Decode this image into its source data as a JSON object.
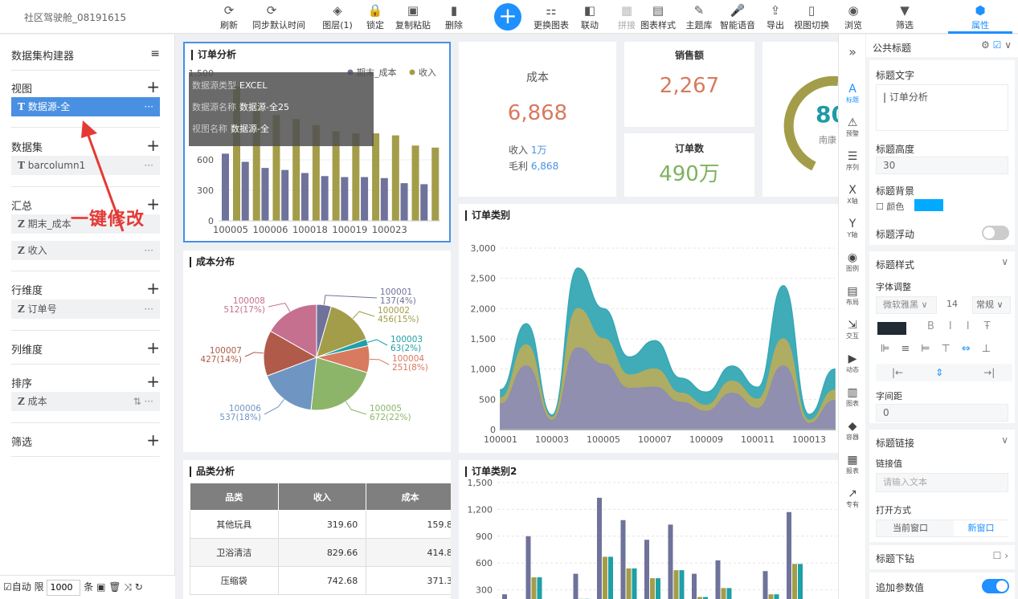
{
  "app": {
    "title": "社区驾驶舱_08191615"
  },
  "toolbar": [
    {
      "label": "刷新",
      "icon": "refresh-icon",
      "g": "⟳"
    },
    {
      "label": "同步默认时间",
      "icon": "sync-time-icon",
      "g": "⟳"
    },
    {
      "label": "图层(1)",
      "icon": "layers-icon",
      "g": "◈"
    },
    {
      "label": "锁定",
      "icon": "lock-icon",
      "g": "🔒"
    },
    {
      "label": "复制粘贴",
      "icon": "copy-paste-icon",
      "g": "▣"
    },
    {
      "label": "删除",
      "icon": "delete-icon",
      "g": "▮"
    },
    {
      "label": "更换图表",
      "icon": "change-chart-icon",
      "g": "⚏"
    },
    {
      "label": "联动",
      "icon": "link-icon",
      "g": "◧"
    },
    {
      "label": "拼接",
      "icon": "splice-icon",
      "g": "▦"
    },
    {
      "label": "图表样式",
      "icon": "chart-style-icon",
      "g": "▤"
    },
    {
      "label": "主题库",
      "icon": "theme-icon",
      "g": "✎"
    },
    {
      "label": "智能语音",
      "icon": "mic-icon",
      "g": "🎤"
    },
    {
      "label": "导出",
      "icon": "export-icon",
      "g": "⇪"
    },
    {
      "label": "视图切换",
      "icon": "view-switch-icon",
      "g": "▯"
    },
    {
      "label": "浏览",
      "icon": "eye-icon",
      "g": "◉"
    },
    {
      "label": "筛选",
      "icon": "filter-icon",
      "g": "▼"
    },
    {
      "label": "属性",
      "icon": "properties-icon",
      "g": "⬢"
    }
  ],
  "left": {
    "header": "数据集构建器",
    "view_label": "视图",
    "view_item": "数据源-全",
    "dataset_label": "数据集",
    "dataset_item": "barcolumn1",
    "summary_label": "汇总",
    "summary_items": [
      "期末_成本",
      "收入"
    ],
    "row_dim_label": "行维度",
    "row_dim_item": "订单号",
    "col_dim_label": "列维度",
    "sort_label": "排序",
    "sort_item": "成本",
    "filter_label": "筛选",
    "annotation": "一键修改",
    "bottom": {
      "auto": "自动",
      "limit": "限",
      "limit_value": "1000",
      "unit": "条"
    },
    "type_t": "T",
    "type_z": "Z"
  },
  "order_analysis": {
    "title": "订单分析",
    "tooltip": [
      {
        "k": "数据源类型",
        "v": "EXCEL"
      },
      {
        "k": "数据源名称",
        "v": "数据源-全25"
      },
      {
        "k": "视图名称",
        "v": "数据源-全"
      }
    ],
    "ytick_top": "1,500",
    "ytick_900": "900"
  },
  "kpi": {
    "cost_label": "成本",
    "cost_value": "6,868",
    "income_label": "收入",
    "income_value": "1万",
    "profit_label": "毛利",
    "profit_value": "6,868",
    "sales_label": "销售额",
    "sales_value": "2,267",
    "orders_label": "订单数",
    "orders_value": "490万",
    "gauge_value": "80",
    "gauge_label": "南康"
  },
  "cost_dist": {
    "title": "成本分布"
  },
  "order_category": {
    "title": "订单类别"
  },
  "category_analysis": {
    "title": "品类分析",
    "columns": [
      "品类",
      "收入",
      "成本"
    ],
    "rows": [
      [
        "其他玩具",
        "319.60",
        "159.8"
      ],
      [
        "卫浴清洁",
        "829.66",
        "414.8"
      ],
      [
        "压缩袋",
        "742.68",
        "371.3"
      ]
    ]
  },
  "order_category2": {
    "title": "订单类别2"
  },
  "iconbar": [
    {
      "label": "标题",
      "icon": "title-icon",
      "g": "A"
    },
    {
      "label": "预警",
      "icon": "alert-icon",
      "g": "⚠"
    },
    {
      "label": "序列",
      "icon": "series-icon",
      "g": "☰"
    },
    {
      "label": "X轴",
      "icon": "x-axis-icon",
      "g": "X"
    },
    {
      "label": "Y轴",
      "icon": "y-axis-icon",
      "g": "Y"
    },
    {
      "label": "图例",
      "icon": "legend-icon",
      "g": "◉"
    },
    {
      "label": "布局",
      "icon": "layout-icon",
      "g": "▤"
    },
    {
      "label": "交互",
      "icon": "interact-icon",
      "g": "⇲"
    },
    {
      "label": "动态",
      "icon": "dynamic-icon",
      "g": "▶"
    },
    {
      "label": "图表",
      "icon": "chart-icon",
      "g": "▥"
    },
    {
      "label": "容器",
      "icon": "container-icon",
      "g": "◆"
    },
    {
      "label": "报表",
      "icon": "report-icon",
      "g": "▦"
    },
    {
      "label": "专有",
      "icon": "exclusive-icon",
      "g": "↗"
    }
  ],
  "props": {
    "header": "公共标题",
    "title_text_label": "标题文字",
    "title_text_value": "订单分析",
    "height_label": "标题高度",
    "height_value": "30",
    "bg_label": "标题背景",
    "color_label": "颜色",
    "bg_color": "#00aaff",
    "float_label": "标题浮动",
    "style_label": "标题样式",
    "font_adjust_label": "字体调整",
    "font_family": "微软雅黑",
    "font_size": "14",
    "font_weight": "常规",
    "letter_spacing_label": "字间距",
    "letter_spacing_value": "0",
    "link_label": "标题链接",
    "link_value_label": "链接值",
    "link_placeholder": "请输入文本",
    "open_mode_label": "打开方式",
    "open_current": "当前窗口",
    "open_new": "新窗口",
    "drill_label": "标题下钻",
    "append_param_label": "追加参数值",
    "font_color": "#222a33"
  },
  "colors": {
    "slate": "#6f729a",
    "olive": "#a39d4a",
    "teal": "#1ea0a8",
    "blue": "#1e90ff"
  },
  "chart_data": [
    {
      "type": "bar",
      "title": "订单分析",
      "categories": [
        "100005",
        "",
        "100006",
        "",
        "100018",
        "",
        "100019",
        "",
        "100023",
        "",
        ""
      ],
      "series": [
        {
          "name": "期末_成本",
          "values": [
            660,
            580,
            520,
            500,
            470,
            440,
            430,
            430,
            420,
            370,
            360
          ]
        },
        {
          "name": "收入",
          "values": [
            1320,
            1160,
            1040,
            1000,
            940,
            880,
            860,
            860,
            840,
            740,
            720
          ]
        }
      ],
      "ylim": [
        0,
        1500
      ],
      "yticks": [
        "0",
        "300",
        "600"
      ]
    },
    {
      "type": "pie",
      "title": "成本分布",
      "slices": [
        {
          "name": "100001",
          "value": 137,
          "label": "137(4%)",
          "color": "#6f729a"
        },
        {
          "name": "100002",
          "value": 456,
          "label": "456(15%)",
          "color": "#a39d4a"
        },
        {
          "name": "100003",
          "value": 63,
          "label": "63(2%)",
          "color": "#1ea0a8"
        },
        {
          "name": "100004",
          "value": 251,
          "label": "251(8%)",
          "color": "#d77a5f"
        },
        {
          "name": "100005",
          "value": 672,
          "label": "672(22%)",
          "color": "#8db56a"
        },
        {
          "name": "100006",
          "value": 537,
          "label": "537(18%)",
          "color": "#6f96c2"
        },
        {
          "name": "100007",
          "value": 427,
          "label": "427(14%)",
          "color": "#b05a4a"
        },
        {
          "name": "100008",
          "value": 512,
          "label": "512(17%)",
          "color": "#c4708e"
        }
      ]
    },
    {
      "type": "area",
      "title": "订单类别",
      "x": [
        "100001",
        "100002",
        "100003",
        "100004",
        "100005",
        "100006",
        "100007",
        "100008",
        "100009",
        "100010",
        "100011",
        "100012",
        "100013",
        "100014"
      ],
      "xticks": [
        "100001",
        "100003",
        "100005",
        "100007",
        "100009",
        "100011",
        "100013"
      ],
      "yticks": [
        "0",
        "500",
        "1,000",
        "1,500",
        "2,000",
        "2,500",
        "3,000"
      ],
      "ylim": [
        0,
        3000
      ],
      "series": [
        {
          "values": [
            420,
            1050,
            150,
            1350,
            1080,
            680,
            700,
            450,
            300,
            600,
            350,
            1050,
            100,
            480
          ],
          "color": "#8e8db3"
        },
        {
          "values": [
            520,
            1400,
            200,
            2000,
            1500,
            900,
            1000,
            600,
            400,
            800,
            500,
            1500,
            150,
            650
          ],
          "color": "#b5ac5e"
        },
        {
          "values": [
            660,
            1750,
            240,
            2670,
            2000,
            1200,
            1470,
            850,
            620,
            1050,
            700,
            2380,
            250,
            1000
          ],
          "color": "#36a8b4"
        }
      ]
    },
    {
      "type": "bar",
      "title": "订单类别2",
      "yticks": [
        "300",
        "600",
        "900",
        "1,200",
        "1,500"
      ],
      "ylim": [
        0,
        1500
      ],
      "groups": [
        [
          250,
          0,
          0
        ],
        [
          900,
          440,
          440
        ],
        [
          120,
          0,
          0
        ],
        [
          480,
          200,
          200
        ],
        [
          1330,
          670,
          670
        ],
        [
          1080,
          540,
          540
        ],
        [
          860,
          430,
          430
        ],
        [
          1030,
          520,
          520
        ],
        [
          480,
          220,
          220
        ],
        [
          630,
          320,
          320
        ],
        [
          70,
          0,
          0
        ],
        [
          510,
          250,
          250
        ],
        [
          1170,
          590,
          590
        ],
        [
          100,
          0,
          0
        ]
      ]
    }
  ]
}
